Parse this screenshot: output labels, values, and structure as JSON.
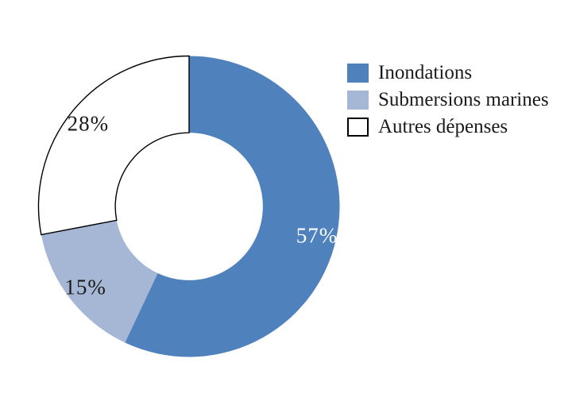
{
  "chart_data": {
    "type": "pie",
    "subtype": "donut",
    "title": "",
    "unit": "%",
    "start_angle_deg": 0,
    "direction": "clockwise",
    "hole_ratio": 0.49,
    "legend_position": "top-right",
    "background_color": "#ffffff",
    "outline_color": "#000000",
    "slices": [
      {
        "label": "Inondations",
        "value": 57,
        "display": "57%",
        "color": "#4f81bd",
        "label_color": "#ffffff",
        "outlined": false
      },
      {
        "label": "Submersions marines",
        "value": 15,
        "display": "15%",
        "color": "#a5b7d5",
        "label_color": "#1a1a1a",
        "outlined": false
      },
      {
        "label": "Autres dépenses",
        "value": 28,
        "display": "28%",
        "color": "#ffffff",
        "label_color": "#1a1a1a",
        "outlined": true
      }
    ]
  }
}
